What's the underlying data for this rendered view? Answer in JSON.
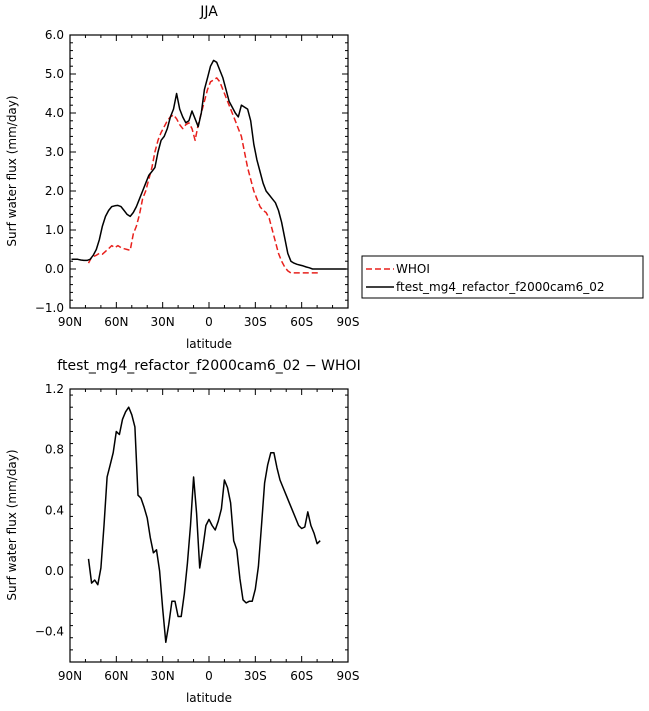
{
  "chart_data": [
    {
      "type": "line",
      "title": "JJA",
      "xlabel": "latitude",
      "ylabel": "Surf water flux (mm/day)",
      "xlim": [
        90,
        -90
      ],
      "ylim": [
        -1.0,
        6.0
      ],
      "xticks": [
        90,
        60,
        30,
        0,
        -30,
        -60,
        -90
      ],
      "xticklabels": [
        "90N",
        "60N",
        "30N",
        "0",
        "30S",
        "60S",
        "90S"
      ],
      "yticks": [
        -1.0,
        0.0,
        1.0,
        2.0,
        3.0,
        4.0,
        5.0,
        6.0
      ],
      "yticklabels": [
        "−1.0",
        "0.0",
        "1.0",
        "2.0",
        "3.0",
        "4.0",
        "5.0",
        "6.0"
      ],
      "legend": "right",
      "series": [
        {
          "name": "WHOI",
          "color": "#e8201c",
          "dash": "dashed",
          "x": [
            78,
            76,
            73,
            71,
            69,
            67,
            65,
            63,
            61,
            59,
            57,
            55,
            53,
            51,
            49,
            47,
            45,
            43,
            41,
            39,
            37,
            35,
            33,
            31,
            29,
            27,
            25,
            23,
            21,
            19,
            17,
            15,
            13,
            11,
            9,
            7,
            5,
            3,
            1,
            -1,
            -3,
            -5,
            -7,
            -9,
            -11,
            -13,
            -15,
            -17,
            -19,
            -21,
            -23,
            -25,
            -27,
            -29,
            -31,
            -33,
            -35,
            -37,
            -39,
            -41,
            -43,
            -45,
            -47,
            -49,
            -51,
            -53,
            -55,
            -57,
            -59,
            -61,
            -63,
            -65,
            -67,
            -69,
            -71
          ],
          "y": [
            0.15,
            0.3,
            0.35,
            0.4,
            0.38,
            0.45,
            0.52,
            0.6,
            0.55,
            0.6,
            0.55,
            0.52,
            0.5,
            0.48,
            0.9,
            1.1,
            1.4,
            1.8,
            2.0,
            2.3,
            2.6,
            3.0,
            3.3,
            3.5,
            3.65,
            3.8,
            3.9,
            3.95,
            3.85,
            3.7,
            3.6,
            3.7,
            3.75,
            3.6,
            3.3,
            3.7,
            4.0,
            4.3,
            4.6,
            4.8,
            4.85,
            4.9,
            4.8,
            4.6,
            4.4,
            4.2,
            4.0,
            3.8,
            3.6,
            3.4,
            3.0,
            2.6,
            2.3,
            2.0,
            1.8,
            1.6,
            1.5,
            1.45,
            1.3,
            1.0,
            0.7,
            0.4,
            0.2,
            0.05,
            -0.05,
            -0.1,
            -0.1,
            -0.1,
            -0.1,
            -0.1,
            -0.1,
            -0.1,
            -0.1,
            -0.1,
            -0.1
          ]
        },
        {
          "name": "ftest_mg4_refactor_f2000cam6_02",
          "color": "#000000",
          "dash": "solid",
          "x": [
            89,
            87,
            85,
            83,
            81,
            79,
            77,
            75,
            73,
            71,
            69,
            67,
            65,
            63,
            61,
            59,
            57,
            55,
            53,
            51,
            49,
            47,
            45,
            43,
            41,
            39,
            37,
            35,
            33,
            31,
            29,
            27,
            25,
            23,
            21,
            19,
            17,
            15,
            13,
            11,
            9,
            7,
            5,
            3,
            1,
            -1,
            -3,
            -5,
            -7,
            -9,
            -11,
            -13,
            -15,
            -17,
            -19,
            -21,
            -23,
            -25,
            -27,
            -29,
            -31,
            -33,
            -35,
            -37,
            -39,
            -41,
            -43,
            -45,
            -47,
            -49,
            -51,
            -53,
            -55,
            -57,
            -59,
            -61,
            -63,
            -65,
            -67,
            -69,
            -71,
            -73,
            -75,
            -77,
            -79,
            -81,
            -83,
            -85,
            -87,
            -89
          ],
          "y": [
            0.25,
            0.25,
            0.25,
            0.23,
            0.22,
            0.22,
            0.25,
            0.35,
            0.5,
            0.75,
            1.1,
            1.35,
            1.5,
            1.6,
            1.62,
            1.63,
            1.6,
            1.5,
            1.4,
            1.35,
            1.45,
            1.6,
            1.8,
            2.0,
            2.2,
            2.4,
            2.5,
            2.6,
            3.0,
            3.3,
            3.4,
            3.6,
            3.9,
            4.1,
            4.5,
            4.1,
            3.9,
            3.75,
            3.8,
            4.05,
            3.85,
            3.65,
            4.0,
            4.6,
            4.9,
            5.2,
            5.35,
            5.3,
            5.1,
            4.9,
            4.6,
            4.3,
            4.15,
            4.0,
            3.9,
            4.2,
            4.15,
            4.1,
            3.8,
            3.2,
            2.8,
            2.5,
            2.2,
            2.0,
            1.9,
            1.8,
            1.7,
            1.5,
            1.2,
            0.8,
            0.4,
            0.2,
            0.15,
            0.12,
            0.1,
            0.08,
            0.05,
            0.03,
            0.0,
            0.0,
            0.0,
            0.0,
            0.0,
            0.0,
            0.0,
            0.0,
            0.0,
            0.0,
            0.0,
            0.0
          ]
        }
      ]
    },
    {
      "type": "line",
      "title": "ftest_mg4_refactor_f2000cam6_02 − WHOI",
      "xlabel": "latitude",
      "ylabel": "Surf water flux (mm/day)",
      "xlim": [
        90,
        -90
      ],
      "ylim": [
        -0.6,
        1.2
      ],
      "xticks": [
        90,
        60,
        30,
        0,
        -30,
        -60,
        -90
      ],
      "xticklabels": [
        "90N",
        "60N",
        "30N",
        "0",
        "30S",
        "60S",
        "90S"
      ],
      "yticks": [
        -0.4,
        0.0,
        0.4,
        0.8,
        1.2
      ],
      "yticklabels": [
        "−0.4",
        "0.0",
        "0.4",
        "0.8",
        "1.2"
      ],
      "series": [
        {
          "color": "#000000",
          "dash": "solid",
          "x": [
            78,
            76,
            74,
            72,
            70,
            68,
            66,
            64,
            62,
            60,
            58,
            56,
            54,
            52,
            50,
            48,
            46,
            44,
            42,
            40,
            38,
            36,
            34,
            32,
            30,
            28,
            26,
            24,
            22,
            20,
            18,
            16,
            14,
            12,
            10,
            8,
            6,
            4,
            2,
            0,
            -2,
            -4,
            -6,
            -8,
            -10,
            -12,
            -14,
            -16,
            -18,
            -20,
            -22,
            -24,
            -26,
            -28,
            -30,
            -32,
            -34,
            -36,
            -38,
            -40,
            -42,
            -44,
            -46,
            -48,
            -50,
            -52,
            -54,
            -56,
            -58,
            -60,
            -62,
            -64,
            -66,
            -68,
            -70,
            -72
          ],
          "y": [
            0.08,
            -0.08,
            -0.06,
            -0.09,
            0.02,
            0.3,
            0.62,
            0.7,
            0.78,
            0.92,
            0.9,
            1.0,
            1.05,
            1.08,
            1.03,
            0.95,
            0.5,
            0.48,
            0.42,
            0.35,
            0.22,
            0.12,
            0.14,
            0.0,
            -0.25,
            -0.47,
            -0.35,
            -0.2,
            -0.2,
            -0.3,
            -0.3,
            -0.15,
            0.05,
            0.3,
            0.62,
            0.38,
            0.02,
            0.15,
            0.3,
            0.34,
            0.3,
            0.27,
            0.33,
            0.41,
            0.6,
            0.55,
            0.45,
            0.2,
            0.14,
            -0.05,
            -0.19,
            -0.21,
            -0.2,
            -0.2,
            -0.12,
            0.03,
            0.3,
            0.58,
            0.7,
            0.78,
            0.78,
            0.68,
            0.6,
            0.55,
            0.5,
            0.45,
            0.4,
            0.35,
            0.3,
            0.28,
            0.29,
            0.39,
            0.3,
            0.25,
            0.18,
            0.2
          ]
        }
      ]
    }
  ]
}
